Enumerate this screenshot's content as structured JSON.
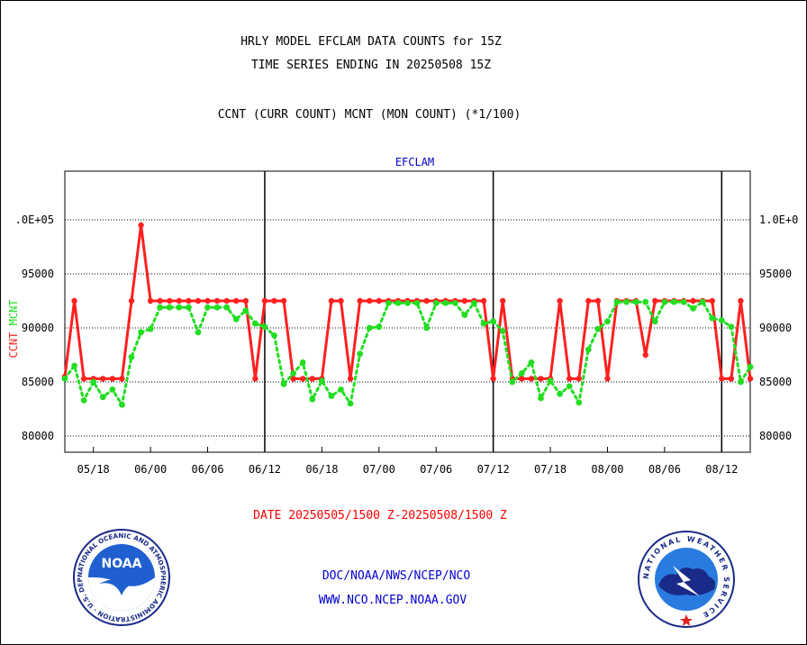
{
  "header": {
    "title_line1": "HRLY MODEL EFCLAM DATA COUNTS for 15Z",
    "title_line2": "TIME SERIES ENDING IN 20250508 15Z",
    "subtitle": "CCNT (CURR COUNT) MCNT (MON COUNT) (*1/100)"
  },
  "footer": {
    "date_range": "DATE 20250505/1500 Z-20250508/1500 Z",
    "agency_path": "DOC/NOAA/NWS/NCEP/NCO",
    "website": "WWW.NCO.NCEP.NOAA.GOV"
  },
  "logos": {
    "noaa_text": "NOAA",
    "noaa_ring": "NATIONAL OCEANIC AND ATMOSPHERIC ADMINISTRATION · U.S. DEPARTMENT OF COMMERCE ·",
    "nws_ring": "NATIONAL WEATHER SERVICE"
  },
  "colors": {
    "ccnt": "#ff2020",
    "mcnt": "#22dd22",
    "plot_title": "#0000cc",
    "footer_blue": "#0000cc",
    "footer_red": "#ff0000"
  },
  "chart_data": {
    "type": "line",
    "title": "EFCLAM",
    "ylabel_series": [
      {
        "name": "CCNT",
        "color": "#ff2020"
      },
      {
        "name": "MCNT",
        "color": "#22dd22"
      }
    ],
    "ylim": [
      78500,
      104500
    ],
    "xlim": [
      0,
      72
    ],
    "y_ticks_left": [
      "80000",
      "85000",
      "90000",
      "95000",
      ".0E+05"
    ],
    "y_ticks_right": [
      "80000",
      "85000",
      "90000",
      "95000",
      "1.0E+0"
    ],
    "y_tick_values": [
      80000,
      85000,
      90000,
      95000,
      100000
    ],
    "x_ticks": [
      "05/18",
      "06/00",
      "06/06",
      "06/12",
      "06/18",
      "07/00",
      "07/06",
      "07/12",
      "07/18",
      "08/00",
      "08/06",
      "08/12"
    ],
    "x_tick_positions": [
      3,
      9,
      15,
      21,
      27,
      33,
      39,
      45,
      51,
      57,
      63,
      69
    ],
    "day_dividers": [
      21,
      45,
      69
    ],
    "grid": "horizontal dotted",
    "series": [
      {
        "name": "CCNT",
        "x": [
          0,
          1,
          2,
          3,
          4,
          5,
          6,
          7,
          8,
          9,
          10,
          11,
          12,
          13,
          14,
          15,
          16,
          17,
          18,
          19,
          20,
          21,
          22,
          23,
          24,
          25,
          26,
          27,
          28,
          29,
          30,
          31,
          32,
          33,
          34,
          35,
          36,
          37,
          38,
          39,
          40,
          41,
          42,
          43,
          44,
          45,
          46,
          47,
          48,
          49,
          50,
          51,
          52,
          53,
          54,
          55,
          56,
          57,
          58,
          59,
          60,
          61,
          62,
          63,
          64,
          65,
          66,
          67,
          68,
          69,
          70,
          71,
          72
        ],
        "values": [
          85500,
          92500,
          85300,
          85300,
          85300,
          85300,
          85300,
          92500,
          99500,
          92500,
          92500,
          92500,
          92500,
          92500,
          92500,
          92500,
          92500,
          92500,
          92500,
          92500,
          85300,
          92500,
          92500,
          92500,
          85300,
          85300,
          85300,
          85300,
          92500,
          92500,
          85300,
          92500,
          92500,
          92500,
          92500,
          92500,
          92500,
          92500,
          92500,
          92500,
          92500,
          92500,
          92500,
          92500,
          92500,
          85300,
          92500,
          85300,
          85300,
          85300,
          85300,
          85300,
          92500,
          85300,
          85300,
          92500,
          92500,
          85300,
          92500,
          92500,
          92500,
          87500,
          92500,
          92500,
          92500,
          92500,
          92500,
          92500,
          92500,
          85300,
          85300,
          92500,
          85300
        ]
      },
      {
        "name": "MCNT",
        "x": [
          0,
          1,
          2,
          3,
          4,
          5,
          6,
          7,
          8,
          9,
          10,
          11,
          12,
          13,
          14,
          15,
          16,
          17,
          18,
          19,
          20,
          21,
          22,
          23,
          24,
          25,
          26,
          27,
          28,
          29,
          30,
          31,
          32,
          33,
          34,
          35,
          36,
          37,
          38,
          39,
          40,
          41,
          42,
          43,
          44,
          45,
          46,
          47,
          48,
          49,
          50,
          51,
          52,
          53,
          54,
          55,
          56,
          57,
          58,
          59,
          60,
          61,
          62,
          63,
          64,
          65,
          66,
          67,
          68,
          69,
          70,
          71,
          72
        ],
        "values": [
          85300,
          86500,
          83300,
          85000,
          83600,
          84300,
          82900,
          87300,
          89600,
          89900,
          91900,
          91900,
          91900,
          91900,
          89600,
          91900,
          91900,
          91900,
          90800,
          91600,
          90400,
          90100,
          89300,
          84800,
          85800,
          86800,
          83400,
          85100,
          83700,
          84300,
          83000,
          87600,
          90000,
          90100,
          92300,
          92300,
          92300,
          92300,
          90000,
          92300,
          92300,
          92300,
          91200,
          92300,
          90400,
          90600,
          89700,
          85000,
          85800,
          86800,
          83500,
          85100,
          83900,
          84600,
          83100,
          88000,
          89900,
          90600,
          92400,
          92400,
          92400,
          92400,
          90600,
          92400,
          92400,
          92400,
          91800,
          92400,
          90900,
          90700,
          90100,
          85000,
          86400
        ]
      }
    ]
  }
}
